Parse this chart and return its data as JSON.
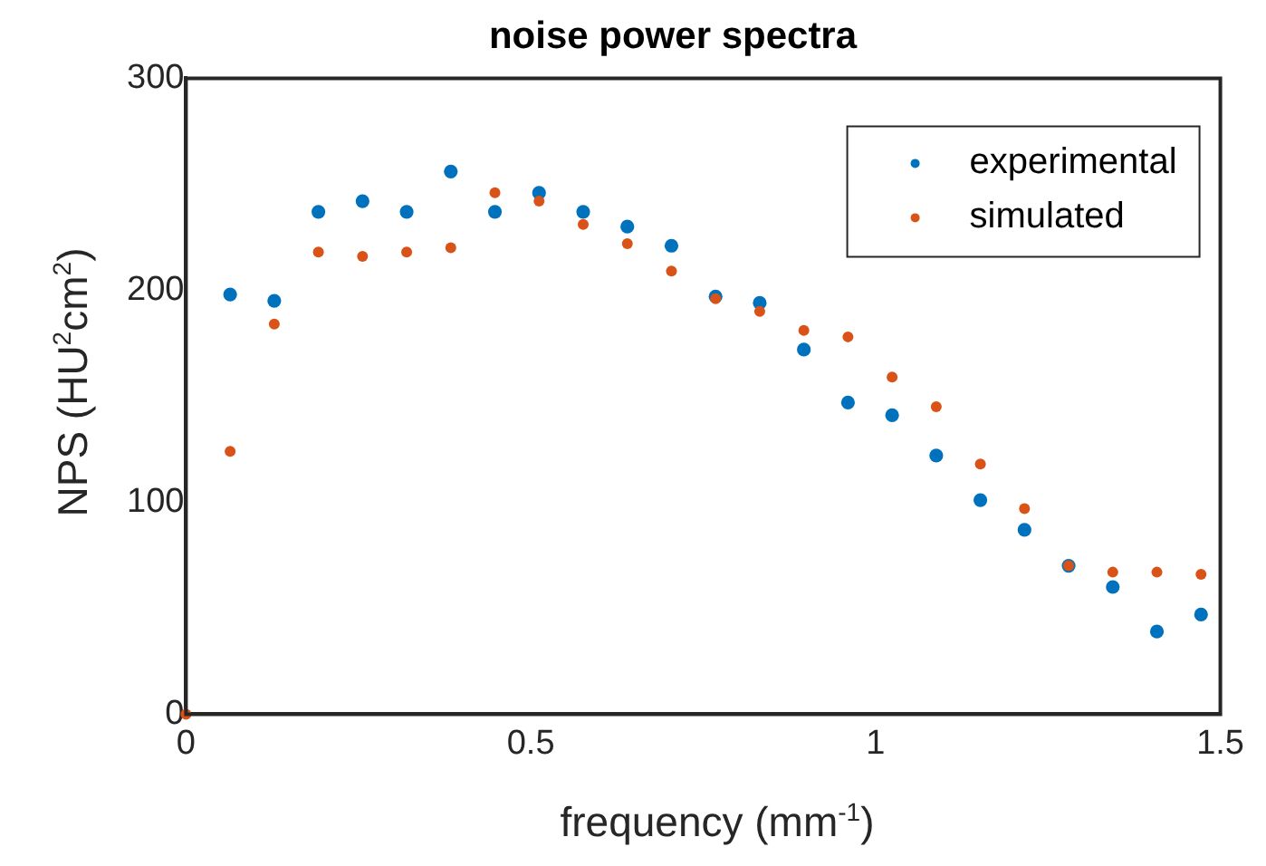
{
  "chart_data": {
    "type": "scatter",
    "title": "noise power spectra",
    "xlabel": "frequency (mm$^{-1}$)",
    "ylabel": "NPS (HU$^{2}$cm$^{2}$)",
    "x": [
      0,
      0.064,
      0.128,
      0.192,
      0.256,
      0.32,
      0.384,
      0.448,
      0.512,
      0.576,
      0.64,
      0.704,
      0.768,
      0.832,
      0.896,
      0.96,
      1.024,
      1.088,
      1.152,
      1.216,
      1.28,
      1.344,
      1.408,
      1.472
    ],
    "series": [
      {
        "name": "experimental",
        "color": "#0072bd",
        "values": [
          null,
          198,
          195,
          237,
          242,
          237,
          256,
          237,
          246,
          237,
          230,
          221,
          197,
          194,
          172,
          147,
          141,
          122,
          101,
          87,
          70,
          60,
          39,
          47
        ]
      },
      {
        "name": "simulated",
        "color": "#d95319",
        "values": [
          0,
          124,
          184,
          218,
          216,
          218,
          220,
          246,
          242,
          231,
          222,
          209,
          196,
          190,
          181,
          178,
          159,
          145,
          118,
          97,
          70,
          67,
          67,
          66
        ]
      }
    ],
    "xlim": [
      0,
      1.5
    ],
    "xticks": [
      0,
      0.5,
      1,
      1.5
    ],
    "ylim": [
      0,
      300
    ],
    "yticks": [
      0,
      100,
      200,
      300
    ],
    "grid": false,
    "legend": "top right",
    "marker": "circle"
  }
}
